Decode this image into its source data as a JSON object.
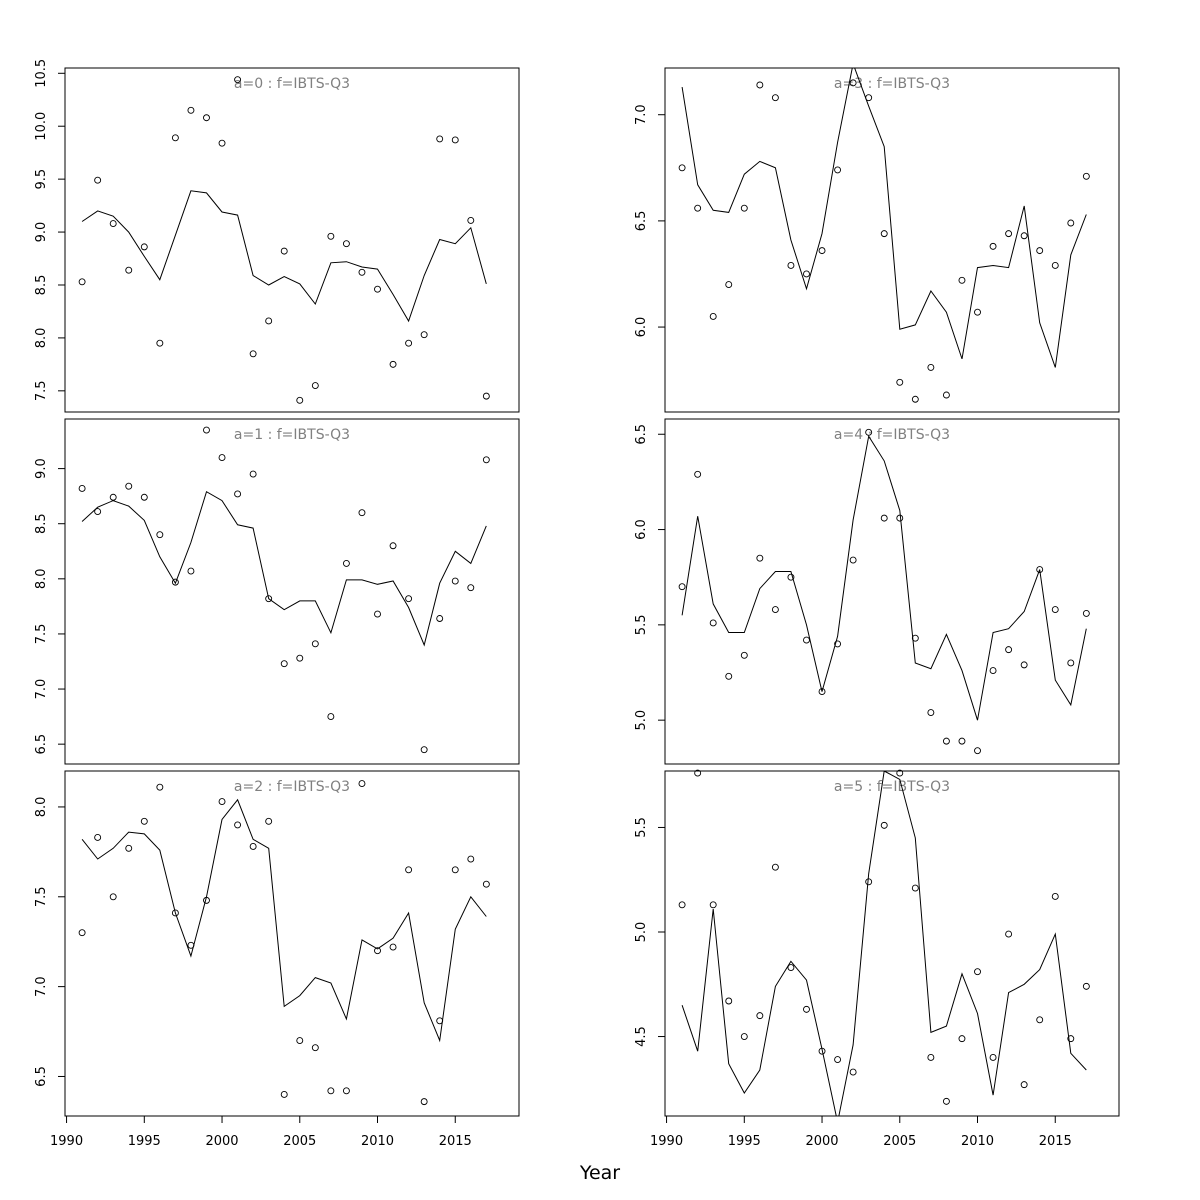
{
  "figure": {
    "xlabel": "Year"
  },
  "chart_data": [
    {
      "type": "scatter",
      "panel": "left-1",
      "title": "a=0  :  f=IBTS-Q3",
      "xlim": [
        1989.9,
        2019.1
      ],
      "ylim": [
        7.3,
        10.55
      ],
      "yticks": [
        "7.5",
        "8.0",
        "8.5",
        "9.0",
        "9.5",
        "10.0",
        "10.5"
      ],
      "years": [
        1991,
        1992,
        1993,
        1994,
        1995,
        1996,
        1997,
        1998,
        1999,
        2000,
        2001,
        2002,
        2003,
        2004,
        2005,
        2006,
        2007,
        2008,
        2009,
        2010,
        2011,
        2012,
        2013,
        2014,
        2015,
        2016,
        2017
      ],
      "observed": [
        8.53,
        9.49,
        9.08,
        8.64,
        8.86,
        7.95,
        9.89,
        10.15,
        10.08,
        9.84,
        10.44,
        7.85,
        8.16,
        8.82,
        7.41,
        7.55,
        8.96,
        8.89,
        8.62,
        8.46,
        7.75,
        7.95,
        8.03,
        9.88,
        9.87,
        9.11,
        7.45
      ],
      "fitted": [
        9.1,
        9.2,
        9.15,
        9.0,
        8.77,
        8.55,
        8.97,
        9.39,
        9.37,
        9.19,
        9.16,
        8.59,
        8.5,
        8.58,
        8.51,
        8.32,
        8.71,
        8.72,
        8.67,
        8.65,
        8.41,
        8.16,
        8.59,
        8.93,
        8.89,
        9.04,
        8.51
      ]
    },
    {
      "type": "scatter",
      "panel": "left-2",
      "title": "a=1  :  f=IBTS-Q3",
      "xlim": [
        1989.9,
        2019.1
      ],
      "ylim": [
        6.32,
        9.45
      ],
      "yticks": [
        "6.5",
        "7.0",
        "7.5",
        "8.0",
        "8.5",
        "9.0"
      ],
      "years": [
        1991,
        1992,
        1993,
        1994,
        1995,
        1996,
        1997,
        1998,
        1999,
        2000,
        2001,
        2002,
        2003,
        2004,
        2005,
        2006,
        2007,
        2008,
        2009,
        2010,
        2011,
        2012,
        2013,
        2014,
        2015,
        2016,
        2017
      ],
      "observed": [
        8.82,
        8.61,
        8.74,
        8.84,
        8.74,
        8.4,
        7.97,
        8.07,
        9.35,
        9.1,
        8.77,
        8.95,
        7.82,
        7.23,
        7.28,
        7.41,
        6.75,
        8.14,
        8.6,
        7.68,
        8.3,
        7.82,
        6.45,
        7.64,
        7.98,
        7.92,
        9.08
      ],
      "fitted": [
        8.52,
        8.65,
        8.71,
        8.66,
        8.53,
        8.2,
        7.96,
        8.33,
        8.79,
        8.71,
        8.49,
        8.46,
        7.82,
        7.72,
        7.8,
        7.8,
        7.51,
        7.99,
        7.99,
        7.95,
        7.98,
        7.74,
        7.4,
        7.96,
        8.25,
        8.14,
        8.48
      ]
    },
    {
      "type": "scatter",
      "panel": "left-3",
      "title": "a=2  :  f=IBTS-Q3",
      "xlim": [
        1989.9,
        2019.1
      ],
      "ylim": [
        6.28,
        8.2
      ],
      "yticks": [
        "6.5",
        "7.0",
        "7.5",
        "8.0"
      ],
      "years": [
        1991,
        1992,
        1993,
        1994,
        1995,
        1996,
        1997,
        1998,
        1999,
        2000,
        2001,
        2002,
        2003,
        2004,
        2005,
        2006,
        2007,
        2008,
        2009,
        2010,
        2011,
        2012,
        2013,
        2014,
        2015,
        2016,
        2017
      ],
      "observed": [
        7.3,
        7.83,
        7.5,
        7.77,
        7.92,
        8.11,
        7.41,
        7.23,
        7.48,
        8.03,
        7.9,
        7.78,
        7.92,
        6.4,
        6.7,
        6.66,
        6.42,
        6.42,
        8.13,
        7.2,
        7.22,
        7.65,
        6.36,
        6.81,
        7.65,
        7.71,
        7.57
      ],
      "fitted": [
        7.82,
        7.71,
        7.77,
        7.86,
        7.85,
        7.76,
        7.41,
        7.17,
        7.5,
        7.93,
        8.04,
        7.82,
        7.77,
        6.89,
        6.95,
        7.05,
        7.02,
        6.82,
        7.26,
        7.21,
        7.27,
        7.41,
        6.91,
        6.7,
        7.32,
        7.5,
        7.39
      ]
    },
    {
      "type": "scatter",
      "panel": "right-1",
      "title": "a=3  :  f=IBTS-Q3",
      "xlim": [
        1989.9,
        2019.1
      ],
      "ylim": [
        5.6,
        7.22
      ],
      "yticks": [
        "6.0",
        "6.5",
        "7.0"
      ],
      "years": [
        1991,
        1992,
        1993,
        1994,
        1995,
        1996,
        1997,
        1998,
        1999,
        2000,
        2001,
        2002,
        2003,
        2004,
        2005,
        2006,
        2007,
        2008,
        2009,
        2010,
        2011,
        2012,
        2013,
        2014,
        2015,
        2016,
        2017
      ],
      "observed": [
        6.75,
        6.56,
        6.05,
        6.2,
        6.56,
        7.14,
        7.08,
        6.29,
        6.25,
        6.36,
        6.74,
        7.15,
        7.08,
        6.44,
        5.74,
        5.66,
        5.81,
        5.68,
        6.22,
        6.07,
        6.38,
        6.44,
        6.43,
        6.36,
        6.29,
        6.49,
        6.71
      ],
      "fitted": [
        7.13,
        6.67,
        6.55,
        6.54,
        6.72,
        6.78,
        6.75,
        6.41,
        6.18,
        6.44,
        6.87,
        7.24,
        7.04,
        6.85,
        5.99,
        6.01,
        6.17,
        6.07,
        5.85,
        6.28,
        6.29,
        6.28,
        6.57,
        6.02,
        5.81,
        6.34,
        6.53
      ]
    },
    {
      "type": "scatter",
      "panel": "right-2",
      "title": "a=4  :  f=IBTS-Q3",
      "xlim": [
        1989.9,
        2019.1
      ],
      "ylim": [
        4.77,
        6.58
      ],
      "yticks": [
        "5.0",
        "5.5",
        "6.0",
        "6.5"
      ],
      "years": [
        1991,
        1992,
        1993,
        1994,
        1995,
        1996,
        1997,
        1998,
        1999,
        2000,
        2001,
        2002,
        2003,
        2004,
        2005,
        2006,
        2007,
        2008,
        2009,
        2010,
        2011,
        2012,
        2013,
        2014,
        2015,
        2016,
        2017
      ],
      "observed": [
        5.7,
        6.29,
        5.51,
        5.23,
        5.34,
        5.85,
        5.58,
        5.75,
        5.42,
        5.15,
        5.4,
        5.84,
        6.51,
        6.06,
        6.06,
        5.43,
        5.04,
        4.89,
        4.89,
        4.84,
        5.26,
        5.37,
        5.29,
        5.79,
        5.58,
        5.3,
        5.56
      ],
      "fitted": [
        5.55,
        6.07,
        5.61,
        5.46,
        5.46,
        5.69,
        5.78,
        5.78,
        5.5,
        5.15,
        5.44,
        6.05,
        6.49,
        6.36,
        6.1,
        5.3,
        5.27,
        5.45,
        5.26,
        5.0,
        5.46,
        5.48,
        5.57,
        5.79,
        5.21,
        5.08,
        5.48
      ]
    },
    {
      "type": "scatter",
      "panel": "right-3",
      "title": "a=5  :  f=IBTS-Q3",
      "xlim": [
        1989.9,
        2019.1
      ],
      "ylim": [
        4.12,
        5.77
      ],
      "yticks": [
        "4.5",
        "5.0",
        "5.5"
      ],
      "years": [
        1991,
        1992,
        1993,
        1994,
        1995,
        1996,
        1997,
        1998,
        1999,
        2000,
        2001,
        2002,
        2003,
        2004,
        2005,
        2006,
        2007,
        2008,
        2009,
        2010,
        2011,
        2012,
        2013,
        2014,
        2015,
        2016,
        2017
      ],
      "observed": [
        5.13,
        5.76,
        5.13,
        4.67,
        4.5,
        4.6,
        5.31,
        4.83,
        4.63,
        4.43,
        4.39,
        4.33,
        5.24,
        5.51,
        5.76,
        5.21,
        4.4,
        4.19,
        4.49,
        4.81,
        4.4,
        4.99,
        4.27,
        4.58,
        5.17,
        4.49,
        4.74
      ],
      "fitted": [
        4.65,
        4.43,
        5.11,
        4.37,
        4.23,
        4.34,
        4.74,
        4.86,
        4.77,
        4.44,
        4.09,
        4.46,
        5.28,
        5.77,
        5.73,
        5.45,
        4.52,
        4.55,
        4.8,
        4.61,
        4.22,
        4.71,
        4.75,
        4.82,
        4.99,
        4.42,
        4.34
      ]
    }
  ],
  "xaxis": {
    "ticks": [
      1990,
      1995,
      2000,
      2005,
      2010,
      2015
    ],
    "tick_labels": [
      "1990",
      "1995",
      "2000",
      "2005",
      "2010",
      "2015"
    ]
  }
}
